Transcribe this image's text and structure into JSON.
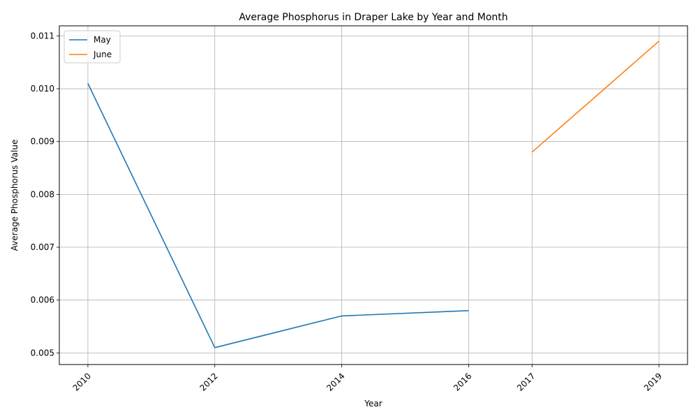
{
  "chart_data": {
    "type": "line",
    "title": "Average Phosphorus in Draper Lake by Year and Month",
    "xlabel": "Year",
    "ylabel": "Average Phosphorus Value",
    "xticks": [
      2010,
      2012,
      2014,
      2016,
      2017,
      2019
    ],
    "xlim": [
      2009.55,
      2019.45
    ],
    "ylim": [
      0.00478,
      0.01119
    ],
    "yticks": [
      0.005,
      0.006,
      0.007,
      0.008,
      0.009,
      0.01,
      0.011
    ],
    "ytick_labels": [
      "0.005",
      "0.006",
      "0.007",
      "0.008",
      "0.009",
      "0.010",
      "0.011"
    ],
    "grid": true,
    "legend_position": "top-left",
    "series": [
      {
        "name": "May",
        "color": "#1f77b4",
        "x": [
          2010,
          2012,
          2014,
          2016
        ],
        "y": [
          0.0101,
          0.0051,
          0.0057,
          0.0058
        ]
      },
      {
        "name": "June",
        "color": "#ff7f0e",
        "x": [
          2017,
          2019
        ],
        "y": [
          0.0088,
          0.0109
        ]
      }
    ]
  }
}
